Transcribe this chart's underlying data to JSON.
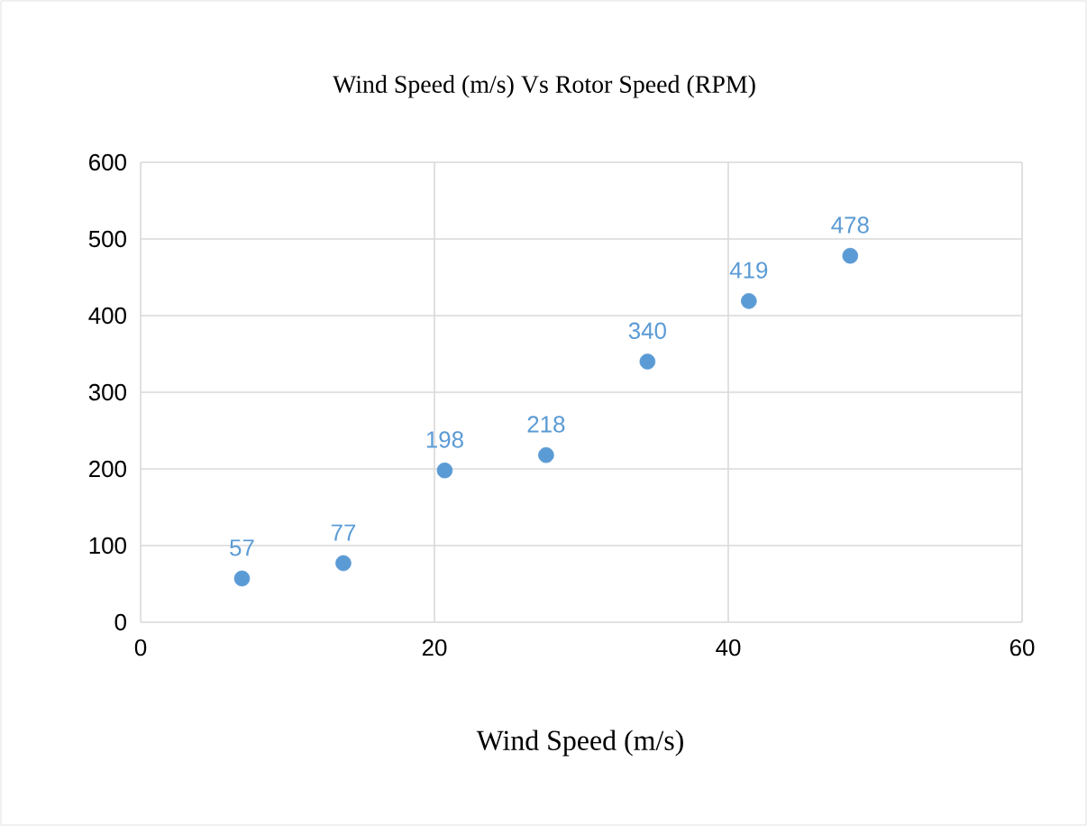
{
  "chart_data": {
    "type": "scatter",
    "title": "Wind Speed (m/s) Vs Rotor Speed (RPM)",
    "xlabel": "Wind Speed (m/s)",
    "x": [
      6.9,
      13.8,
      20.7,
      27.6,
      34.5,
      41.4,
      48.3
    ],
    "values": [
      57,
      77,
      198,
      218,
      340,
      419,
      478
    ],
    "color": "#5b9bd5",
    "xlim": [
      0,
      60
    ],
    "ylim": [
      0,
      600
    ],
    "xticks": [
      0,
      20,
      40,
      60
    ],
    "yticks": [
      0,
      100,
      200,
      300,
      400,
      500,
      600
    ],
    "grid": true,
    "marker": "circle",
    "data_labels": true
  }
}
